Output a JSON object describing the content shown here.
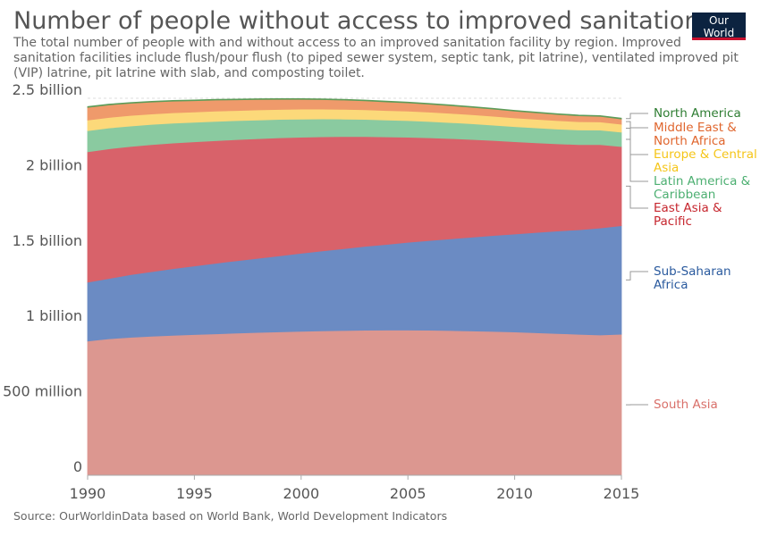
{
  "header": {
    "title": "Number of people without access to improved sanitation facilities",
    "subtitle": "The total number of people with and without access to an improved sanitation facility by region. Improved sanitation facilities include flush/pour flush (to piped sewer system, septic tank, pit latrine), ventilated improved pit (VIP) latrine, pit latrine with slab, and composting toilet.",
    "logo_line1": "Our World",
    "logo_line2": "in Data"
  },
  "footer": {
    "source": "Source: OurWorldinData based on World Bank, World Development Indicators"
  },
  "chart_data": {
    "type": "area",
    "stacked": true,
    "title": "Number of people without access to improved sanitation facilities",
    "x": [
      1990,
      1991,
      1992,
      1993,
      1994,
      1995,
      1996,
      1997,
      1998,
      1999,
      2000,
      2001,
      2002,
      2003,
      2004,
      2005,
      2006,
      2007,
      2008,
      2009,
      2010,
      2011,
      2012,
      2013,
      2014,
      2015
    ],
    "xlim": [
      1990,
      2015
    ],
    "ylim": [
      0,
      2500000000
    ],
    "x_ticks": [
      {
        "value": 1990,
        "label": "1990"
      },
      {
        "value": 1995,
        "label": "1995"
      },
      {
        "value": 2000,
        "label": "2000"
      },
      {
        "value": 2005,
        "label": "2005"
      },
      {
        "value": 2010,
        "label": "2010"
      },
      {
        "value": 2015,
        "label": "2015"
      }
    ],
    "y_ticks": [
      {
        "value": 0,
        "label": "0"
      },
      {
        "value": 500000000,
        "label": "500 million"
      },
      {
        "value": 1000000000,
        "label": "1 billion"
      },
      {
        "value": 1500000000,
        "label": "1.5 billion"
      },
      {
        "value": 2000000000,
        "label": "2 billion"
      },
      {
        "value": 2500000000,
        "label": "2.5 billion"
      }
    ],
    "grid": true,
    "legend_position": "right",
    "series": [
      {
        "name": "South Asia",
        "color": "#dc9790",
        "values": [
          890000000,
          905000000,
          915000000,
          922000000,
          928000000,
          933000000,
          938000000,
          943000000,
          947000000,
          951000000,
          955000000,
          958000000,
          960000000,
          962000000,
          963000000,
          963000000,
          962000000,
          960000000,
          957000000,
          954000000,
          950000000,
          945000000,
          940000000,
          935000000,
          930000000,
          935000000
        ]
      },
      {
        "name": "Sub-Saharan Africa",
        "color": "#6b8bc3",
        "values": [
          390000000,
          400000000,
          415000000,
          428000000,
          442000000,
          455000000,
          468000000,
          480000000,
          492000000,
          504000000,
          517000000,
          530000000,
          543000000,
          556000000,
          568000000,
          582000000,
          595000000,
          608000000,
          622000000,
          636000000,
          650000000,
          665000000,
          680000000,
          693000000,
          710000000,
          720000000
        ]
      },
      {
        "name": "East Asia & Pacific",
        "color": "#d8626a",
        "values": [
          865000000,
          860000000,
          850000000,
          843000000,
          833000000,
          823000000,
          813000000,
          803000000,
          793000000,
          783000000,
          770000000,
          757000000,
          743000000,
          728000000,
          713000000,
          697000000,
          681000000,
          665000000,
          648000000,
          630000000,
          612000000,
          595000000,
          578000000,
          565000000,
          553000000,
          525000000
        ]
      },
      {
        "name": "Latin America & Caribbean",
        "color": "#8acaa0",
        "values": [
          140000000,
          138000000,
          136000000,
          134000000,
          132000000,
          130000000,
          128000000,
          126000000,
          124000000,
          122000000,
          120000000,
          118000000,
          116000000,
          114000000,
          112000000,
          110000000,
          108000000,
          106000000,
          104000000,
          102000000,
          100000000,
          99000000,
          98000000,
          97000000,
          96000000,
          95000000
        ]
      },
      {
        "name": "Europe & Central Asia",
        "color": "#fcd97a",
        "values": [
          70000000,
          70000000,
          70000000,
          69000000,
          69000000,
          68000000,
          68000000,
          67000000,
          67000000,
          66000000,
          66000000,
          65000000,
          65000000,
          64000000,
          63000000,
          63000000,
          62000000,
          61000000,
          60000000,
          59000000,
          58000000,
          57000000,
          56000000,
          55000000,
          54000000,
          53000000
        ]
      },
      {
        "name": "Middle East & North Africa",
        "color": "#ef9a6b",
        "values": [
          85000000,
          83000000,
          81000000,
          79000000,
          77000000,
          75000000,
          73000000,
          71000000,
          69000000,
          67000000,
          65000000,
          63000000,
          61000000,
          59000000,
          57000000,
          55000000,
          53000000,
          51000000,
          49000000,
          47000000,
          45000000,
          43000000,
          41000000,
          39000000,
          37000000,
          35000000
        ]
      },
      {
        "name": "North America",
        "color": "#5d9c59",
        "values": [
          5000000,
          5000000,
          5000000,
          5000000,
          5000000,
          5000000,
          5000000,
          5000000,
          5000000,
          5000000,
          5000000,
          5000000,
          5000000,
          5000000,
          5000000,
          5000000,
          5000000,
          5000000,
          5000000,
          5000000,
          5000000,
          5000000,
          5000000,
          5000000,
          5000000,
          5000000
        ]
      }
    ],
    "legend": [
      {
        "lines": [
          "North America"
        ],
        "color": "#2e7d32"
      },
      {
        "lines": [
          "Middle East &",
          "North Africa"
        ],
        "color": "#e0662e"
      },
      {
        "lines": [
          "Europe & Central",
          "Asia"
        ],
        "color": "#f5c518"
      },
      {
        "lines": [
          "Latin America &",
          "Caribbean"
        ],
        "color": "#4caf71"
      },
      {
        "lines": [
          "East Asia &",
          "Pacific"
        ],
        "color": "#c6262e"
      },
      {
        "lines": [
          "Sub-Saharan",
          "Africa"
        ],
        "color": "#2a5a9e"
      },
      {
        "lines": [
          "South Asia"
        ],
        "color": "#d9706a"
      }
    ]
  }
}
